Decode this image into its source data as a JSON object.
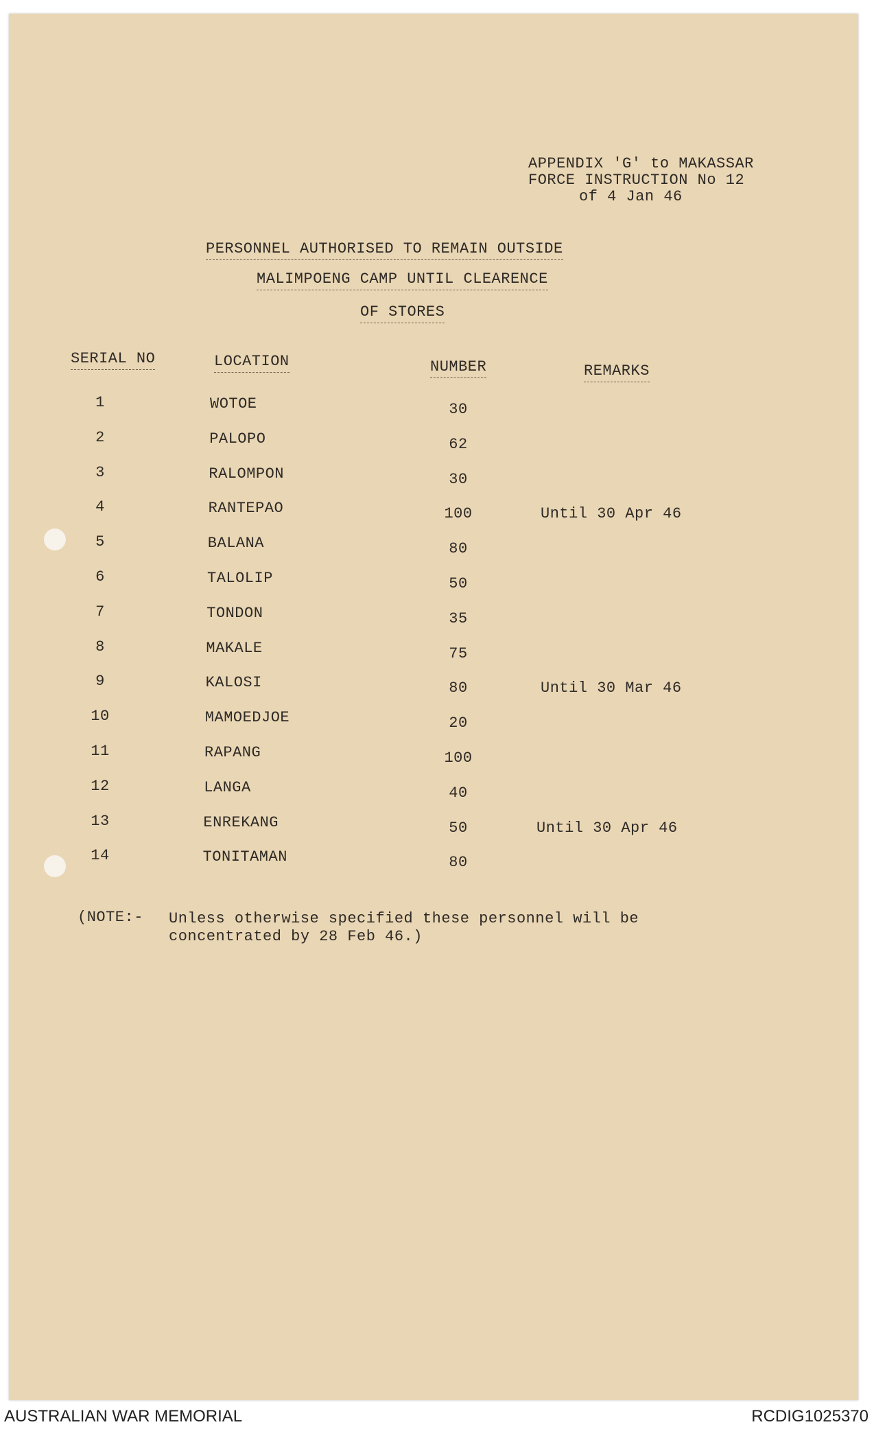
{
  "header": {
    "lines": [
      "APPENDIX 'G' to MAKASSAR",
      "FORCE INSTRUCTION No 12",
      "of 4 Jan 46"
    ]
  },
  "title": {
    "lines": [
      "PERSONNEL AUTHORISED TO REMAIN OUTSIDE",
      "MALIMPOENG CAMP UNTIL CLEARENCE",
      "OF STORES"
    ]
  },
  "table": {
    "columns": [
      "SERIAL NO",
      "LOCATION",
      "NUMBER",
      "REMARKS"
    ],
    "rows": [
      {
        "serial": "1",
        "location": "WOTOE",
        "number": "30",
        "remarks": ""
      },
      {
        "serial": "2",
        "location": "PALOPO",
        "number": "62",
        "remarks": ""
      },
      {
        "serial": "3",
        "location": "RALOMPON",
        "number": "30",
        "remarks": ""
      },
      {
        "serial": "4",
        "location": "RANTEPAO",
        "number": "100",
        "remarks": "Until 30 Apr 46"
      },
      {
        "serial": "5",
        "location": "BALANA",
        "number": "80",
        "remarks": ""
      },
      {
        "serial": "6",
        "location": "TALOLIP",
        "number": "50",
        "remarks": ""
      },
      {
        "serial": "7",
        "location": "TONDON",
        "number": "35",
        "remarks": ""
      },
      {
        "serial": "8",
        "location": "MAKALE",
        "number": "75",
        "remarks": ""
      },
      {
        "serial": "9",
        "location": "KALOSI",
        "number": "80",
        "remarks": "Until 30 Mar 46"
      },
      {
        "serial": "10",
        "location": "MAMOEDJOE",
        "number": "20",
        "remarks": ""
      },
      {
        "serial": "11",
        "location": "RAPANG",
        "number": "100",
        "remarks": ""
      },
      {
        "serial": "12",
        "location": "LANGA",
        "number": "40",
        "remarks": ""
      },
      {
        "serial": "13",
        "location": "ENREKANG",
        "number": "50",
        "remarks": "Until 30 Apr 46"
      },
      {
        "serial": "14",
        "location": "TONITAMAN",
        "number": "80",
        "remarks": ""
      }
    ]
  },
  "note": {
    "label": "(NOTE:-",
    "line1": "Unless otherwise specified these personnel will be",
    "line2": "concentrated by 28 Feb 46.)"
  },
  "footer": {
    "left": "AUSTRALIAN WAR MEMORIAL",
    "right": "RCDIG1025370"
  },
  "colors": {
    "paper": "#e9d6b4",
    "ink": "#2e2a26"
  }
}
